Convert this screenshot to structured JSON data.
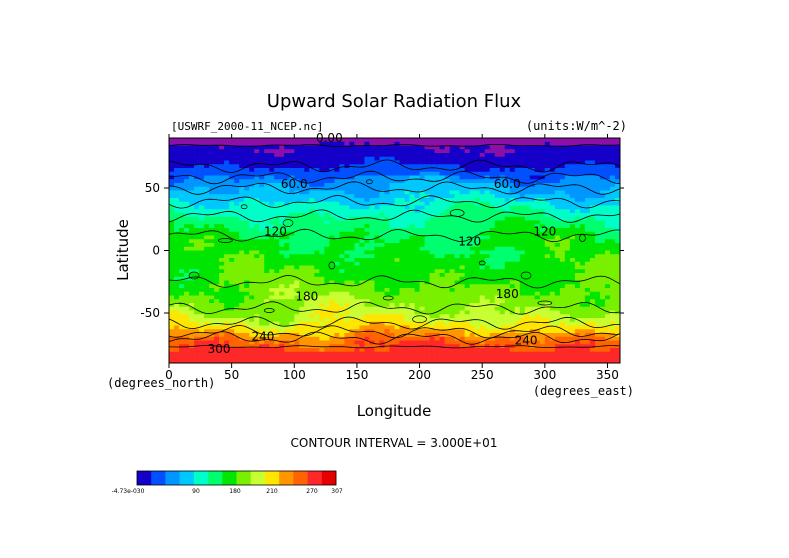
{
  "chart_data": {
    "type": "heatmap",
    "title": "Upward Solar Radiation Flux",
    "file_label": "[USWRF_2000-11_NCEP.nc]",
    "units_label": "(units:W/m^-2)",
    "xlabel": "Longitude",
    "ylabel": "Latitude",
    "x_unit_note": "(degrees_north)",
    "y_unit_note": "(degrees_east)",
    "xlim": [
      0,
      360
    ],
    "ylim": [
      -90,
      90
    ],
    "x_ticks": [
      "0",
      "50",
      "100",
      "150",
      "200",
      "250",
      "300",
      "350"
    ],
    "y_ticks": [
      "50",
      "0",
      "-50"
    ],
    "contour_interval_text": "CONTOUR INTERVAL = 3.000E+01",
    "contour_labels": [
      "0.00",
      "60.0",
      "60.0",
      "120",
      "120",
      "120",
      "180",
      "180",
      "240",
      "240",
      "300"
    ],
    "zonal_profile": [
      {
        "lat": 90,
        "value": 5
      },
      {
        "lat": 78,
        "value": 15
      },
      {
        "lat": 64,
        "value": 35
      },
      {
        "lat": 55,
        "value": 60
      },
      {
        "lat": 45,
        "value": 80
      },
      {
        "lat": 35,
        "value": 105
      },
      {
        "lat": 25,
        "value": 125
      },
      {
        "lat": 12,
        "value": 145
      },
      {
        "lat": 0,
        "value": 150
      },
      {
        "lat": -12,
        "value": 160
      },
      {
        "lat": -25,
        "value": 170
      },
      {
        "lat": -38,
        "value": 185
      },
      {
        "lat": -50,
        "value": 200
      },
      {
        "lat": -58,
        "value": 215
      },
      {
        "lat": -65,
        "value": 240
      },
      {
        "lat": -70,
        "value": 262
      },
      {
        "lat": -78,
        "value": 285
      },
      {
        "lat": -90,
        "value": 300
      }
    ],
    "colorbar": {
      "colors": [
        "#1400c8",
        "#0050ff",
        "#0096ff",
        "#00c8ff",
        "#00ffc8",
        "#00ff6e",
        "#00e600",
        "#78f000",
        "#c8ff32",
        "#ffe600",
        "#ff9600",
        "#ff6400",
        "#ff2828",
        "#e60000"
      ],
      "tick_labels": [
        "-4.73e-030",
        "90",
        "180",
        "210",
        "270",
        "307"
      ]
    },
    "level_colors": [
      {
        "min": -1,
        "max": 10,
        "color": "#8c10a8"
      },
      {
        "min": 10,
        "max": 30,
        "color": "#1400c8"
      },
      {
        "min": 30,
        "max": 50,
        "color": "#0050ff"
      },
      {
        "min": 50,
        "max": 70,
        "color": "#0096ff"
      },
      {
        "min": 70,
        "max": 95,
        "color": "#00c8ff"
      },
      {
        "min": 95,
        "max": 120,
        "color": "#00ffc8"
      },
      {
        "min": 120,
        "max": 145,
        "color": "#00ff6e"
      },
      {
        "min": 145,
        "max": 170,
        "color": "#00e600"
      },
      {
        "min": 170,
        "max": 195,
        "color": "#78f000"
      },
      {
        "min": 195,
        "max": 215,
        "color": "#c8ff32"
      },
      {
        "min": 215,
        "max": 240,
        "color": "#ffe600"
      },
      {
        "min": 240,
        "max": 262,
        "color": "#ff9600"
      },
      {
        "min": 262,
        "max": 282,
        "color": "#ff6400"
      },
      {
        "min": 282,
        "max": 400,
        "color": "#ff2828"
      }
    ]
  }
}
